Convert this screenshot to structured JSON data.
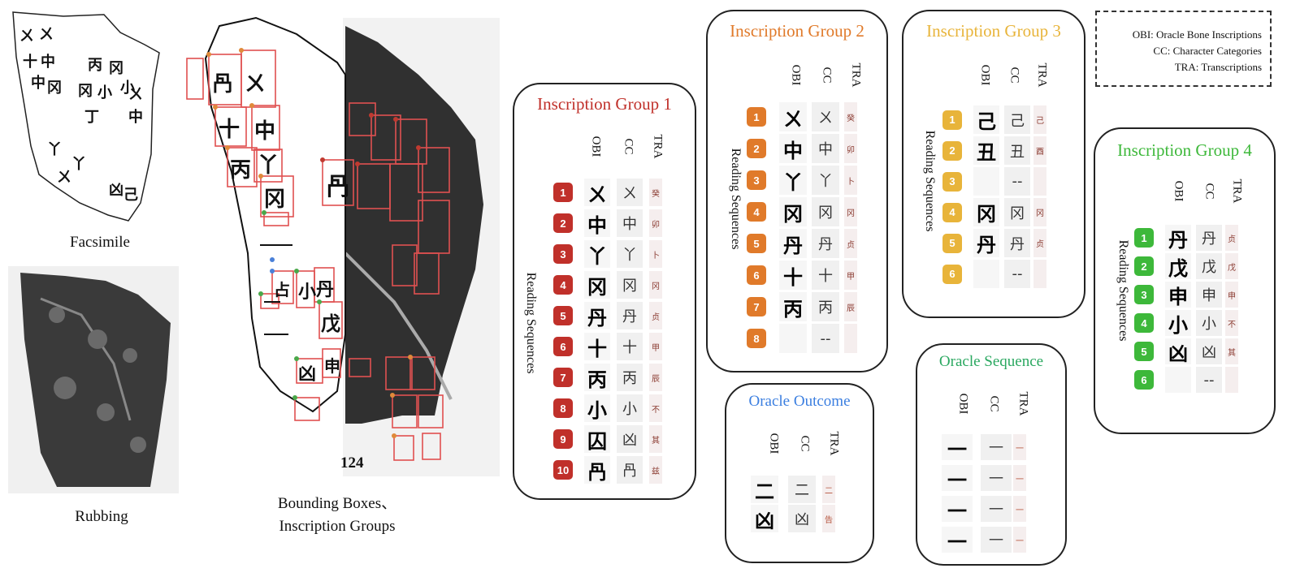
{
  "captions": {
    "facsimile": "Facsimile",
    "rubbing": "Rubbing",
    "bbox_line1": "Bounding Boxes、",
    "bbox_line2": "Inscription Groups",
    "plate_number": "124"
  },
  "legend": {
    "obi": "OBI: Oracle Bone Inscriptions",
    "cc": "CC: Character Categories",
    "tra": "TRA: Transcriptions"
  },
  "column_headers": {
    "obi": "OBI",
    "cc": "CC",
    "tra": "TRA"
  },
  "reading_label": "Reading Sequences",
  "colors": {
    "group1": "#c0302a",
    "group2": "#e07a2a",
    "group3": "#e8b43a",
    "group4": "#3db83a",
    "outcome": "#3a7ee0",
    "sequence": "#2aa860"
  },
  "groups": {
    "g1": {
      "title": "Inscription Group 1",
      "numbers": [
        "1",
        "2",
        "3",
        "4",
        "5",
        "6",
        "7",
        "8",
        "9",
        "10"
      ],
      "obi": [
        "ㄨ",
        "中",
        "丫",
        "冈",
        "丹",
        "十",
        "丙",
        "小",
        "囚",
        "冎"
      ],
      "cc": [
        "ㄨ",
        "中",
        "丫",
        "冈",
        "丹",
        "十",
        "丙",
        "小",
        "凶",
        "冎"
      ],
      "tra": [
        "癸",
        "卯",
        "卜",
        "冈",
        "贞",
        "甲",
        "辰",
        "不",
        "其",
        "兹"
      ]
    },
    "g2": {
      "title": "Inscription Group 2",
      "numbers": [
        "1",
        "2",
        "3",
        "4",
        "5",
        "6",
        "7",
        "8"
      ],
      "obi": [
        "ㄨ",
        "中",
        "丫",
        "冈",
        "丹",
        "十",
        "丙",
        ""
      ],
      "cc": [
        "ㄨ",
        "中",
        "丫",
        "冈",
        "丹",
        "十",
        "丙",
        "--"
      ],
      "tra": [
        "癸",
        "卯",
        "卜",
        "冈",
        "贞",
        "甲",
        "辰",
        ""
      ]
    },
    "g3": {
      "title": "Inscription Group 3",
      "numbers": [
        "1",
        "2",
        "3",
        "4",
        "5",
        "6"
      ],
      "obi": [
        "己",
        "丑",
        "",
        "冈",
        "丹",
        ""
      ],
      "cc": [
        "己",
        "丑",
        "--",
        "冈",
        "丹",
        "--"
      ],
      "tra": [
        "己",
        "酉",
        "",
        "冈",
        "贞",
        ""
      ]
    },
    "g4": {
      "title": "Inscription Group 4",
      "numbers": [
        "1",
        "2",
        "3",
        "4",
        "5",
        "6"
      ],
      "obi": [
        "丹",
        "戊",
        "申",
        "小",
        "凶",
        ""
      ],
      "cc": [
        "丹",
        "戊",
        "申",
        "小",
        "凶",
        "--"
      ],
      "tra": [
        "贞",
        "戊",
        "申",
        "不",
        "其",
        ""
      ]
    },
    "outcome": {
      "title": "Oracle Outcome",
      "obi": [
        "二",
        "凶"
      ],
      "cc": [
        "二",
        "凶"
      ],
      "tra": [
        "二",
        "告"
      ]
    },
    "sequence": {
      "title": "Oracle Sequence",
      "obi": [
        "一",
        "一",
        "一",
        "一"
      ],
      "cc": [
        "一",
        "一",
        "一",
        "一"
      ],
      "tra": [
        "一",
        "一",
        "一",
        "一"
      ]
    }
  }
}
